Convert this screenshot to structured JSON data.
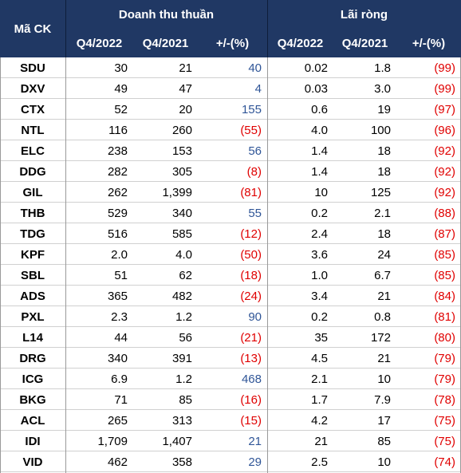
{
  "header": {
    "code": "Mã CK",
    "group1": "Doanh thu thuần",
    "group2": "Lãi ròng",
    "columns": [
      "Q4/2022",
      "Q4/2021",
      "+/-(%)",
      "Q4/2022",
      "Q4/2021",
      "+/-(%)"
    ]
  },
  "table": {
    "rows": [
      [
        "SDU",
        "30",
        "21",
        "40",
        "0.02",
        "1.8",
        "(99)"
      ],
      [
        "DXV",
        "49",
        "47",
        "4",
        "0.03",
        "3.0",
        "(99)"
      ],
      [
        "CTX",
        "52",
        "20",
        "155",
        "0.6",
        "19",
        "(97)"
      ],
      [
        "NTL",
        "116",
        "260",
        "(55)",
        "4.0",
        "100",
        "(96)"
      ],
      [
        "ELC",
        "238",
        "153",
        "56",
        "1.4",
        "18",
        "(92)"
      ],
      [
        "DDG",
        "282",
        "305",
        "(8)",
        "1.4",
        "18",
        "(92)"
      ],
      [
        "GIL",
        "262",
        "1,399",
        "(81)",
        "10",
        "125",
        "(92)"
      ],
      [
        "THB",
        "529",
        "340",
        "55",
        "0.2",
        "2.1",
        "(88)"
      ],
      [
        "TDG",
        "516",
        "585",
        "(12)",
        "2.4",
        "18",
        "(87)"
      ],
      [
        "KPF",
        "2.0",
        "4.0",
        "(50)",
        "3.6",
        "24",
        "(85)"
      ],
      [
        "SBL",
        "51",
        "62",
        "(18)",
        "1.0",
        "6.7",
        "(85)"
      ],
      [
        "ADS",
        "365",
        "482",
        "(24)",
        "3.4",
        "21",
        "(84)"
      ],
      [
        "PXL",
        "2.3",
        "1.2",
        "90",
        "0.2",
        "0.8",
        "(81)"
      ],
      [
        "L14",
        "44",
        "56",
        "(21)",
        "35",
        "172",
        "(80)"
      ],
      [
        "DRG",
        "340",
        "391",
        "(13)",
        "4.5",
        "21",
        "(79)"
      ],
      [
        "ICG",
        "6.9",
        "1.2",
        "468",
        "2.1",
        "10",
        "(79)"
      ],
      [
        "BKG",
        "71",
        "85",
        "(16)",
        "1.7",
        "7.9",
        "(78)"
      ],
      [
        "ACL",
        "265",
        "313",
        "(15)",
        "4.2",
        "17",
        "(75)"
      ],
      [
        "IDI",
        "1,709",
        "1,407",
        "21",
        "21",
        "85",
        "(75)"
      ],
      [
        "VID",
        "462",
        "358",
        "29",
        "2.5",
        "10",
        "(74)"
      ]
    ]
  }
}
